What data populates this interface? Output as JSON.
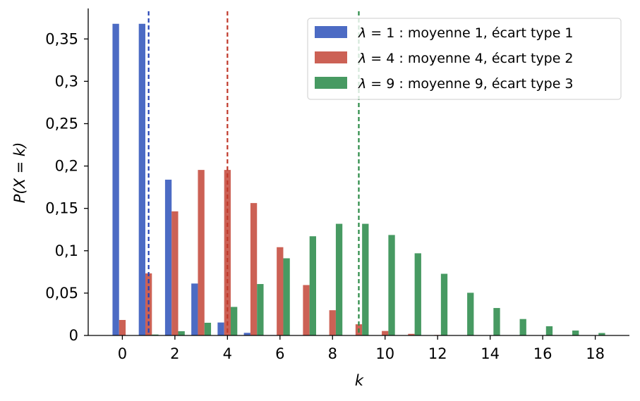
{
  "chart_data": {
    "type": "bar",
    "xlabel": "k",
    "ylabel": "P(X = k)",
    "x": [
      0,
      1,
      2,
      3,
      4,
      5,
      6,
      7,
      8,
      9,
      10,
      11,
      12,
      13,
      14,
      15,
      16,
      17,
      18
    ],
    "xticks": [
      0,
      2,
      4,
      6,
      8,
      10,
      12,
      14,
      16,
      18
    ],
    "xtick_labels": [
      "0",
      "2",
      "4",
      "6",
      "8",
      "10",
      "12",
      "14",
      "16",
      "18"
    ],
    "xlim": [
      -1.3,
      19.3
    ],
    "yticks": [
      0,
      0.05,
      0.1,
      0.15,
      0.2,
      0.25,
      0.3,
      0.35
    ],
    "ytick_labels": [
      "0",
      "0,05",
      "0,1",
      "0,15",
      "0,2",
      "0,25",
      "0,3",
      "0,35"
    ],
    "ylim": [
      0,
      0.386
    ],
    "grid": false,
    "legend_position": "top-right",
    "series": [
      {
        "name": "λ = 1 : moyenne 1, écart type 1",
        "lambda": "1",
        "legend_rest": " : moyenne 1, écart type 1",
        "mean": 1,
        "color": "#4c6bc4",
        "values": [
          0.3679,
          0.3679,
          0.1839,
          0.0613,
          0.0153,
          0.0031,
          0.0005,
          0.0001,
          0,
          0,
          0,
          0,
          0,
          0,
          0,
          0,
          0,
          0,
          0
        ]
      },
      {
        "name": "λ = 4 : moyenne 4, écart type 2",
        "lambda": "4",
        "legend_rest": " : moyenne 4, écart type 2",
        "mean": 4,
        "color": "#cc6155",
        "values": [
          0.0183,
          0.0733,
          0.1465,
          0.1954,
          0.1954,
          0.1563,
          0.1042,
          0.0595,
          0.0298,
          0.0132,
          0.0053,
          0.0019,
          0.0006,
          0.0002,
          0.0001,
          0,
          0,
          0,
          0
        ]
      },
      {
        "name": "λ = 9 : moyenne 9, écart type 3",
        "lambda": "9",
        "legend_rest": " : moyenne 9, écart type 3",
        "mean": 9,
        "color": "#479a62",
        "values": [
          0.0001,
          0.0011,
          0.005,
          0.015,
          0.0337,
          0.0607,
          0.0911,
          0.1171,
          0.1318,
          0.1318,
          0.1186,
          0.097,
          0.0728,
          0.0504,
          0.0324,
          0.0194,
          0.0109,
          0.0058,
          0.0029
        ]
      }
    ],
    "mean_line_colors": [
      "#2342b5",
      "#c0392b",
      "#2a8a45"
    ]
  }
}
